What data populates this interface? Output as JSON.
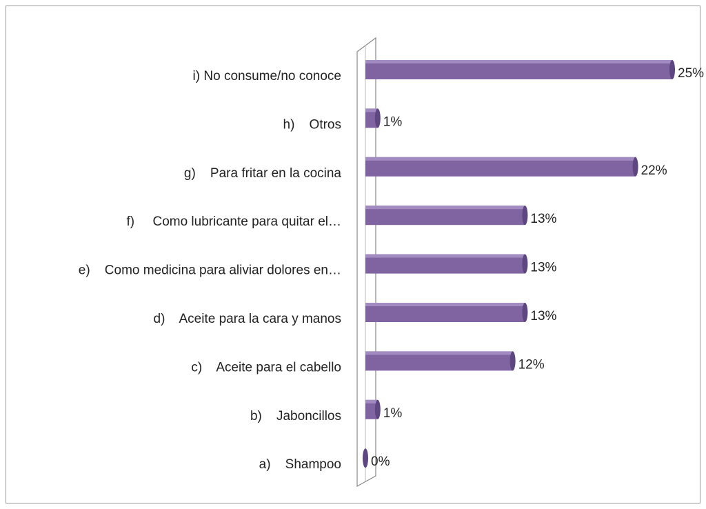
{
  "chart_data": {
    "type": "bar",
    "orientation": "horizontal",
    "categories": [
      "i) No consume/no conoce",
      "h)    Otros",
      "g)    Para fritar en la cocina",
      "f)     Como lubricante para quitar el…",
      "e)    Como medicina para aliviar dolores en…",
      "d)    Aceite para la cara y manos",
      "c)    Aceite para el cabello",
      "b)    Jaboncillos",
      "a)    Shampoo"
    ],
    "values": [
      25,
      1,
      22,
      13,
      13,
      13,
      12,
      1,
      0
    ],
    "value_labels": [
      "25%",
      "1%",
      "22%",
      "13%",
      "13%",
      "13%",
      "12%",
      "1%",
      "0%"
    ],
    "color": "#8064a2"
  }
}
